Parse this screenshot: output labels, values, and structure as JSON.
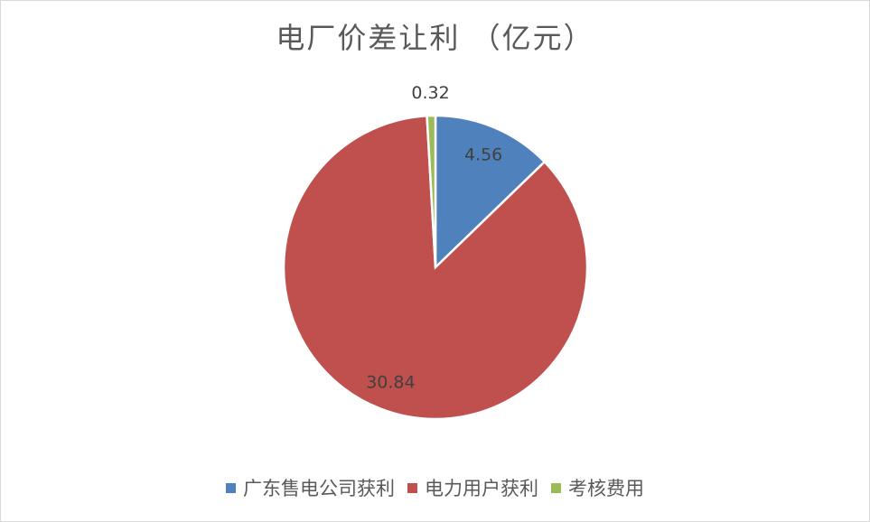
{
  "chart_data": {
    "type": "pie",
    "title": "电厂价差让利 （亿元）",
    "categories": [
      "广东售电公司获利",
      "电力用户获利",
      "考核费用"
    ],
    "values": [
      4.56,
      30.84,
      0.32
    ],
    "data_labels": [
      "4.56",
      "30.84",
      "0.32"
    ],
    "colors": [
      "#4F81BD",
      "#C0504D",
      "#9BBB59"
    ],
    "start_angle": "top, clockwise",
    "legend": "bottom"
  }
}
